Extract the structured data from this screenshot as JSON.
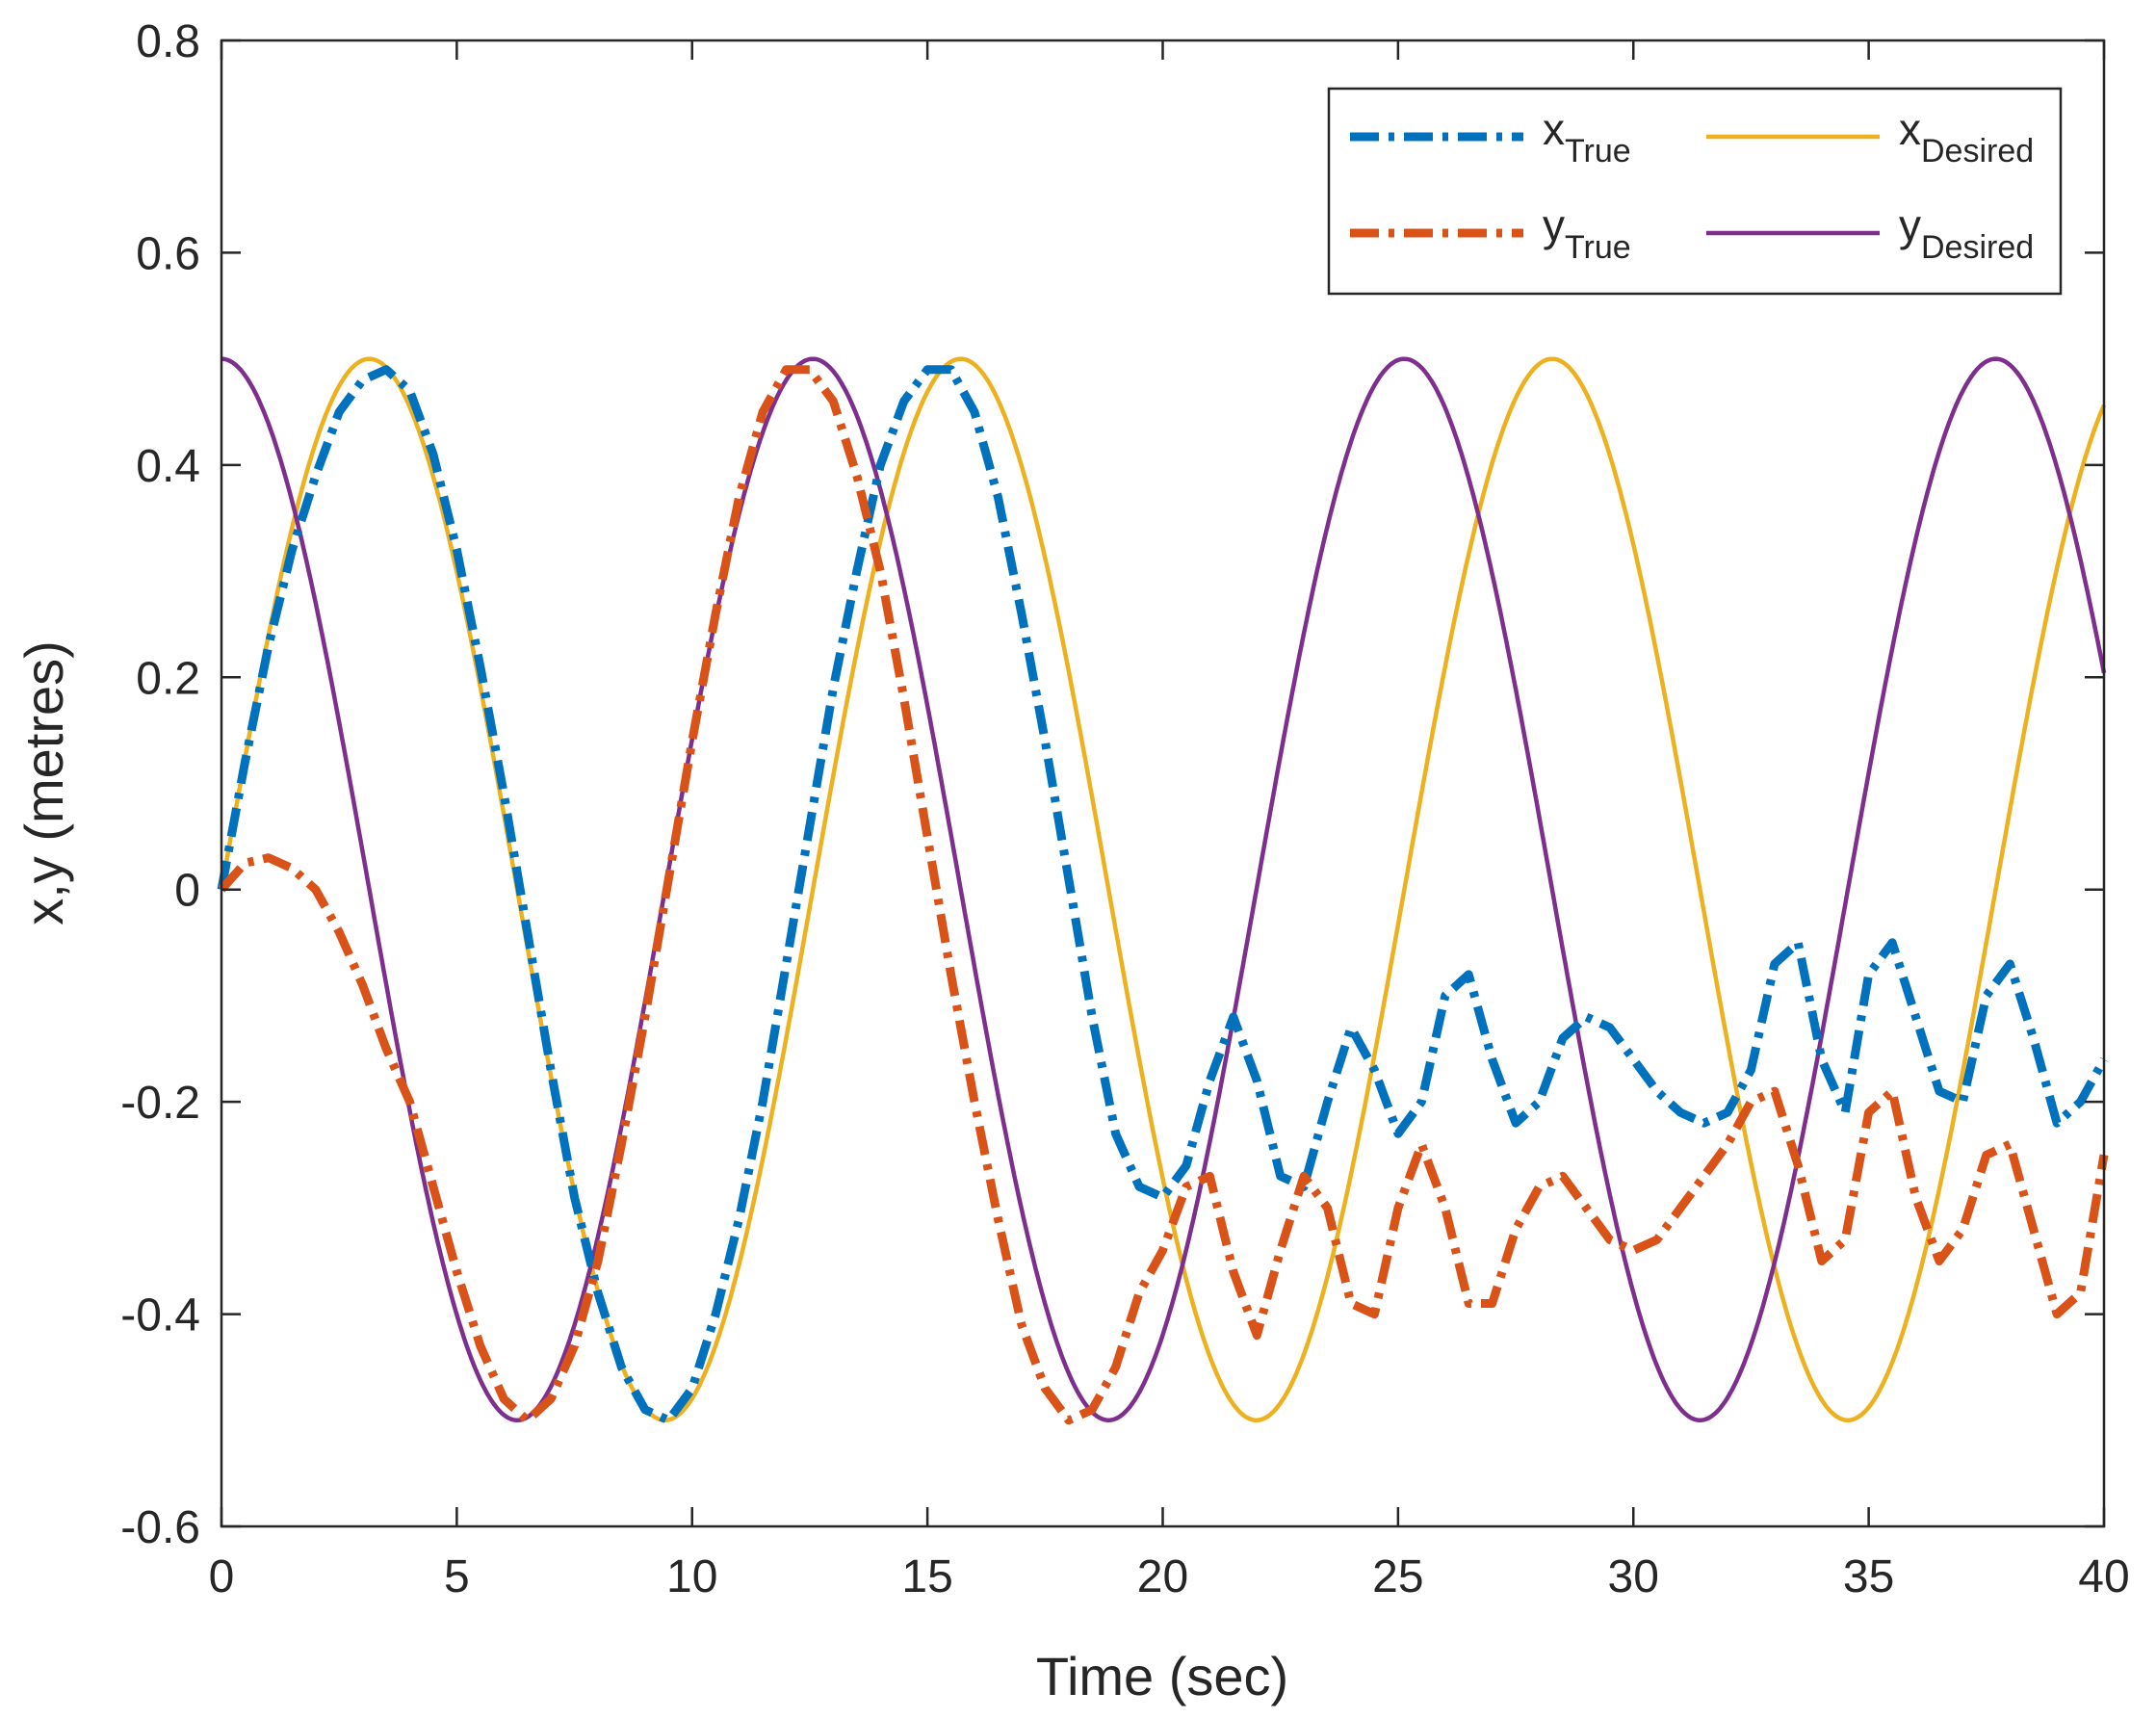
{
  "chart_data": {
    "type": "line",
    "title": "",
    "xlabel": "Time (sec)",
    "ylabel": "x,y (metres)",
    "xlim": [
      0,
      40
    ],
    "ylim": [
      -0.6,
      0.8
    ],
    "xticks": [
      0,
      5,
      10,
      15,
      20,
      25,
      30,
      35,
      40
    ],
    "yticks": [
      -0.6,
      -0.4,
      -0.2,
      0,
      0.2,
      0.4,
      0.6,
      0.8
    ],
    "xtick_labels": [
      "0",
      "5",
      "10",
      "15",
      "20",
      "25",
      "30",
      "35",
      "40"
    ],
    "ytick_labels": [
      "-0.6",
      "-0.4",
      "-0.2",
      "0",
      "0.2",
      "0.4",
      "0.6",
      "0.8"
    ],
    "grid": false,
    "legend_position": "top-right",
    "series": [
      {
        "name": "x_True",
        "label_main": "x",
        "label_sub": "True",
        "color": "#0072BD",
        "style": "dash-dot",
        "x": [
          0,
          0.5,
          1,
          1.5,
          2,
          2.5,
          3,
          3.5,
          4,
          4.5,
          5,
          5.5,
          6,
          6.5,
          7,
          7.5,
          8,
          8.5,
          9,
          9.5,
          10,
          10.5,
          11,
          11.5,
          12,
          12.5,
          13,
          13.5,
          14,
          14.5,
          15,
          15.5,
          16,
          16.5,
          17,
          17.5,
          18,
          18.5,
          19,
          19.5,
          20,
          20.5,
          21,
          21.5,
          22,
          22.5,
          23,
          23.5,
          24,
          24.5,
          25,
          25.5,
          26,
          26.5,
          27,
          27.5,
          28,
          28.5,
          29,
          29.5,
          30,
          30.5,
          31,
          31.5,
          32,
          32.5,
          33,
          33.5,
          34,
          34.5,
          35,
          35.5,
          36,
          36.5,
          37,
          37.5,
          38,
          38.5,
          39,
          39.5,
          40
        ],
        "y": [
          0,
          0.12,
          0.23,
          0.32,
          0.39,
          0.45,
          0.48,
          0.49,
          0.47,
          0.41,
          0.32,
          0.21,
          0.09,
          -0.04,
          -0.17,
          -0.29,
          -0.38,
          -0.45,
          -0.49,
          -0.5,
          -0.47,
          -0.4,
          -0.31,
          -0.2,
          -0.07,
          0.06,
          0.19,
          0.3,
          0.4,
          0.46,
          0.49,
          0.49,
          0.45,
          0.37,
          0.26,
          0.14,
          0.01,
          -0.12,
          -0.23,
          -0.28,
          -0.29,
          -0.26,
          -0.18,
          -0.12,
          -0.18,
          -0.27,
          -0.28,
          -0.2,
          -0.13,
          -0.17,
          -0.23,
          -0.2,
          -0.1,
          -0.08,
          -0.16,
          -0.22,
          -0.2,
          -0.14,
          -0.12,
          -0.13,
          -0.16,
          -0.19,
          -0.21,
          -0.22,
          -0.21,
          -0.17,
          -0.07,
          -0.05,
          -0.16,
          -0.21,
          -0.08,
          -0.05,
          -0.12,
          -0.19,
          -0.2,
          -0.1,
          -0.07,
          -0.14,
          -0.22,
          -0.2,
          -0.16
        ]
      },
      {
        "name": "y_True",
        "label_main": "y",
        "label_sub": "True",
        "color": "#D95319",
        "style": "dash-dot",
        "x": [
          0,
          0.5,
          1,
          1.5,
          2,
          2.5,
          3,
          3.5,
          4,
          4.5,
          5,
          5.5,
          6,
          6.5,
          7,
          7.5,
          8,
          8.5,
          9,
          9.5,
          10,
          10.5,
          11,
          11.5,
          12,
          12.5,
          13,
          13.5,
          14,
          14.5,
          15,
          15.5,
          16,
          16.5,
          17,
          17.5,
          18,
          18.5,
          19,
          19.5,
          20,
          20.5,
          21,
          21.5,
          22,
          22.5,
          23,
          23.5,
          24,
          24.5,
          25,
          25.5,
          26,
          26.5,
          27,
          27.5,
          28,
          28.5,
          29,
          29.5,
          30,
          30.5,
          31,
          31.5,
          32,
          32.5,
          33,
          33.5,
          34,
          34.5,
          35,
          35.5,
          36,
          36.5,
          37,
          37.5,
          38,
          38.5,
          39,
          39.5,
          40
        ],
        "y": [
          0,
          0.025,
          0.03,
          0.02,
          0,
          -0.04,
          -0.09,
          -0.15,
          -0.2,
          -0.28,
          -0.36,
          -0.43,
          -0.48,
          -0.5,
          -0.48,
          -0.43,
          -0.35,
          -0.24,
          -0.12,
          0.01,
          0.14,
          0.26,
          0.37,
          0.45,
          0.49,
          0.49,
          0.46,
          0.39,
          0.3,
          0.18,
          0.05,
          -0.08,
          -0.2,
          -0.31,
          -0.41,
          -0.47,
          -0.5,
          -0.49,
          -0.45,
          -0.38,
          -0.34,
          -0.28,
          -0.27,
          -0.36,
          -0.42,
          -0.34,
          -0.27,
          -0.3,
          -0.39,
          -0.4,
          -0.3,
          -0.24,
          -0.3,
          -0.39,
          -0.39,
          -0.32,
          -0.28,
          -0.27,
          -0.3,
          -0.33,
          -0.34,
          -0.33,
          -0.3,
          -0.27,
          -0.24,
          -0.2,
          -0.19,
          -0.26,
          -0.35,
          -0.33,
          -0.21,
          -0.19,
          -0.29,
          -0.35,
          -0.32,
          -0.25,
          -0.24,
          -0.32,
          -0.4,
          -0.38,
          -0.25
        ]
      },
      {
        "name": "x_Desired",
        "label_main": "x",
        "label_sub": "Desired",
        "color": "#EDB120",
        "style": "solid",
        "function": "0.5*sin(t/2)",
        "amplitude": 0.5,
        "angular_frequency": 0.5,
        "phase": "sin"
      },
      {
        "name": "y_Desired",
        "label_main": "y",
        "label_sub": "Desired",
        "color": "#7E2F8E",
        "style": "solid",
        "function": "0.5*cos(t/2)",
        "amplitude": 0.5,
        "angular_frequency": 0.5,
        "phase": "cos"
      }
    ]
  }
}
